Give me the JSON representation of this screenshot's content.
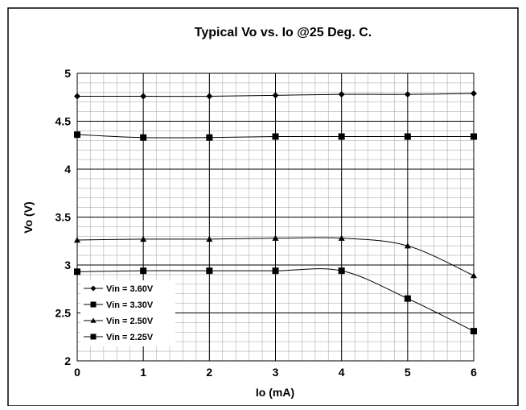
{
  "chart_data": {
    "type": "line",
    "title": "Typical Vo vs. Io @25 Deg. C.",
    "xlabel": "Io (mA)",
    "ylabel": "Vo (V)",
    "xlim": [
      0,
      6
    ],
    "ylim": [
      2,
      5
    ],
    "x_ticks": [
      "0",
      "1",
      "2",
      "3",
      "4",
      "5",
      "6"
    ],
    "y_ticks": [
      "2",
      "2.5",
      "3",
      "3.5",
      "4",
      "4.5",
      "5"
    ],
    "grid": true,
    "legend_position": "bottom-left",
    "x": [
      0,
      1,
      2,
      3,
      4,
      5,
      6
    ],
    "series": [
      {
        "name": "Vin = 3.60V",
        "marker": "diamond",
        "values": [
          4.76,
          4.76,
          4.76,
          4.77,
          4.78,
          4.78,
          4.79
        ]
      },
      {
        "name": "Vin = 3.30V",
        "marker": "square",
        "values": [
          4.36,
          4.33,
          4.33,
          4.34,
          4.34,
          4.34,
          4.34
        ]
      },
      {
        "name": "Vin = 2.50V",
        "marker": "triangle",
        "values": [
          3.26,
          3.27,
          3.27,
          3.28,
          3.28,
          3.2,
          2.89
        ]
      },
      {
        "name": "Vin = 2.25V",
        "marker": "square",
        "values": [
          2.93,
          2.94,
          2.94,
          2.94,
          2.94,
          2.65,
          2.31
        ]
      }
    ]
  }
}
